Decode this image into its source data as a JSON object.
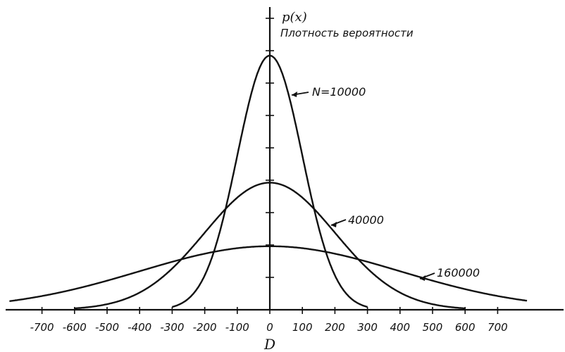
{
  "chart_data": {
    "type": "line",
    "ylabel": "p(x)",
    "ylabel_sub": "Плотность вероятности",
    "xlabel": "D",
    "xlim": [
      -800,
      800
    ],
    "x_ticks": [
      -700,
      -600,
      -500,
      -400,
      -300,
      -200,
      -100,
      0,
      100,
      200,
      300,
      400,
      500,
      600,
      700
    ],
    "x_tick_labels": [
      "-700",
      "-600",
      "-500",
      "-400",
      "-300",
      "-200",
      "-100",
      "0",
      "100",
      "200",
      "300",
      "400",
      "500",
      "600",
      "700"
    ],
    "grid": false,
    "series": [
      {
        "name": "N = 10 000",
        "label": "N=10000",
        "sigma": 100,
        "peak": 1.0,
        "xrange": [
          -300,
          300
        ]
      },
      {
        "name": "40 000",
        "label": "40000",
        "sigma": 200,
        "peak": 0.5,
        "xrange": [
          -600,
          600
        ]
      },
      {
        "name": "160 000",
        "label": "160000",
        "sigma": 400,
        "peak": 0.25,
        "xrange": [
          -800,
          790
        ]
      }
    ]
  }
}
